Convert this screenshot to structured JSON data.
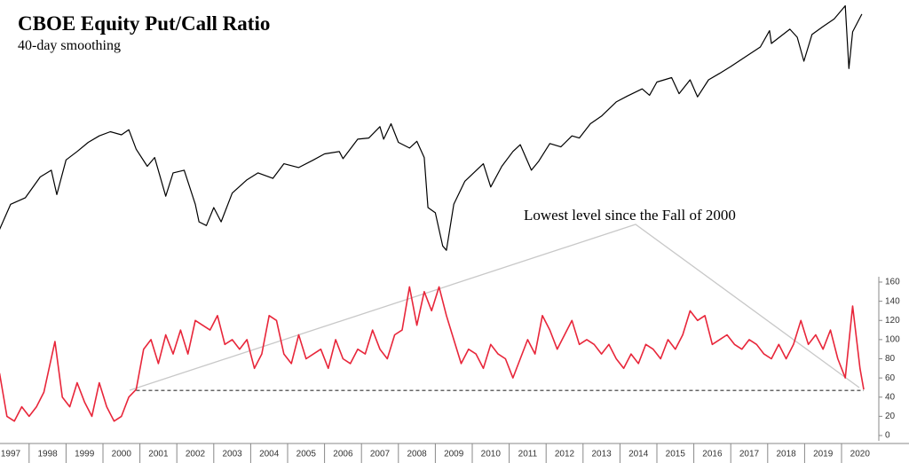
{
  "chart_data": [
    {
      "type": "line",
      "title": "CBOE Equity Put/Call Ratio",
      "subtitle": "40-day smoothing",
      "log_scale": true,
      "xlim": [
        1997,
        2021
      ],
      "ylim": [
        650,
        3450
      ],
      "series": [
        {
          "color": "#000000",
          "x": [
            1997.2,
            1997.5,
            1997.9,
            1998.3,
            1998.6,
            1998.75,
            1999.0,
            1999.3,
            1999.6,
            1999.9,
            2000.2,
            2000.5,
            2000.7,
            2000.9,
            2001.2,
            2001.4,
            2001.7,
            2001.9,
            2002.2,
            2002.5,
            2002.6,
            2002.8,
            2003.0,
            2003.2,
            2003.5,
            2003.9,
            2004.2,
            2004.6,
            2004.9,
            2005.3,
            2005.7,
            2006.0,
            2006.4,
            2006.5,
            2006.9,
            2007.2,
            2007.5,
            2007.6,
            2007.8,
            2008.0,
            2008.3,
            2008.5,
            2008.7,
            2008.8,
            2009.0,
            2009.2,
            2009.3,
            2009.5,
            2009.8,
            2010.0,
            2010.3,
            2010.5,
            2010.8,
            2011.1,
            2011.3,
            2011.6,
            2011.8,
            2012.1,
            2012.4,
            2012.7,
            2012.9,
            2013.2,
            2013.5,
            2013.9,
            2014.2,
            2014.6,
            2014.8,
            2015.0,
            2015.4,
            2015.6,
            2015.9,
            2016.1,
            2016.4,
            2016.7,
            2017.0,
            2017.4,
            2017.8,
            2018.05,
            2018.1,
            2018.6,
            2018.8,
            2018.98,
            2019.2,
            2019.5,
            2019.8,
            2020.1,
            2020.2,
            2020.3,
            2020.55
          ],
          "values": [
            780,
            920,
            960,
            1100,
            1150,
            980,
            1230,
            1300,
            1380,
            1440,
            1480,
            1450,
            1500,
            1320,
            1180,
            1250,
            970,
            1130,
            1150,
            920,
            820,
            800,
            900,
            820,
            990,
            1080,
            1130,
            1090,
            1200,
            1170,
            1230,
            1280,
            1300,
            1240,
            1410,
            1420,
            1530,
            1410,
            1560,
            1380,
            1330,
            1390,
            1250,
            900,
            870,
            700,
            680,
            920,
            1070,
            1120,
            1200,
            1030,
            1180,
            1300,
            1360,
            1150,
            1220,
            1370,
            1340,
            1440,
            1420,
            1560,
            1640,
            1800,
            1870,
            1960,
            1880,
            2050,
            2110,
            1900,
            2080,
            1860,
            2080,
            2170,
            2270,
            2420,
            2580,
            2870,
            2640,
            2900,
            2750,
            2350,
            2800,
            2950,
            3100,
            3380,
            2240,
            2850,
            3200
          ]
        }
      ]
    },
    {
      "type": "line",
      "annotation": "Lowest level since the Fall of 2000",
      "reference_line": 47,
      "xlim": [
        1997,
        2021
      ],
      "ylim": [
        -5,
        165
      ],
      "xticks": [
        1997,
        1998,
        1999,
        2000,
        2001,
        2002,
        2003,
        2004,
        2005,
        2006,
        2007,
        2008,
        2009,
        2010,
        2011,
        2012,
        2013,
        2014,
        2015,
        2016,
        2017,
        2018,
        2019,
        2020
      ],
      "yticks": [
        0,
        20,
        40,
        60,
        80,
        100,
        120,
        140,
        160
      ],
      "series": [
        {
          "color": "#e8263a",
          "x": [
            1997.2,
            1997.4,
            1997.6,
            1997.8,
            1998.0,
            1998.2,
            1998.4,
            1998.7,
            1998.9,
            1999.1,
            1999.3,
            1999.5,
            1999.7,
            1999.9,
            2000.1,
            2000.3,
            2000.5,
            2000.7,
            2000.9,
            2001.1,
            2001.3,
            2001.5,
            2001.7,
            2001.9,
            2002.1,
            2002.3,
            2002.5,
            2002.7,
            2002.9,
            2003.1,
            2003.3,
            2003.5,
            2003.7,
            2003.9,
            2004.1,
            2004.3,
            2004.5,
            2004.7,
            2004.9,
            2005.1,
            2005.3,
            2005.5,
            2005.7,
            2005.9,
            2006.1,
            2006.3,
            2006.5,
            2006.7,
            2006.9,
            2007.1,
            2007.3,
            2007.5,
            2007.7,
            2007.9,
            2008.1,
            2008.3,
            2008.5,
            2008.7,
            2008.9,
            2009.1,
            2009.3,
            2009.5,
            2009.7,
            2009.9,
            2010.1,
            2010.3,
            2010.5,
            2010.7,
            2010.9,
            2011.1,
            2011.3,
            2011.5,
            2011.7,
            2011.9,
            2012.1,
            2012.3,
            2012.5,
            2012.7,
            2012.9,
            2013.1,
            2013.3,
            2013.5,
            2013.7,
            2013.9,
            2014.1,
            2014.3,
            2014.5,
            2014.7,
            2014.9,
            2015.1,
            2015.3,
            2015.5,
            2015.7,
            2015.9,
            2016.1,
            2016.3,
            2016.5,
            2016.7,
            2016.9,
            2017.1,
            2017.3,
            2017.5,
            2017.7,
            2017.9,
            2018.1,
            2018.3,
            2018.5,
            2018.7,
            2018.9,
            2019.1,
            2019.3,
            2019.5,
            2019.7,
            2019.9,
            2020.1,
            2020.3,
            2020.5,
            2020.6
          ],
          "values": [
            65,
            20,
            15,
            30,
            20,
            30,
            45,
            98,
            40,
            30,
            55,
            35,
            20,
            55,
            30,
            15,
            20,
            40,
            48,
            90,
            100,
            75,
            105,
            85,
            110,
            85,
            120,
            115,
            110,
            125,
            95,
            100,
            90,
            100,
            70,
            85,
            125,
            120,
            85,
            75,
            105,
            80,
            85,
            90,
            70,
            100,
            80,
            75,
            90,
            85,
            110,
            90,
            80,
            105,
            110,
            155,
            115,
            150,
            130,
            155,
            125,
            100,
            75,
            90,
            85,
            70,
            95,
            85,
            80,
            60,
            80,
            100,
            85,
            125,
            110,
            90,
            105,
            120,
            95,
            100,
            95,
            85,
            95,
            80,
            70,
            85,
            75,
            95,
            90,
            80,
            100,
            90,
            105,
            130,
            120,
            125,
            95,
            100,
            105,
            95,
            90,
            100,
            95,
            85,
            80,
            95,
            80,
            95,
            120,
            95,
            105,
            90,
            110,
            80,
            60,
            135,
            70,
            48
          ]
        }
      ]
    }
  ]
}
